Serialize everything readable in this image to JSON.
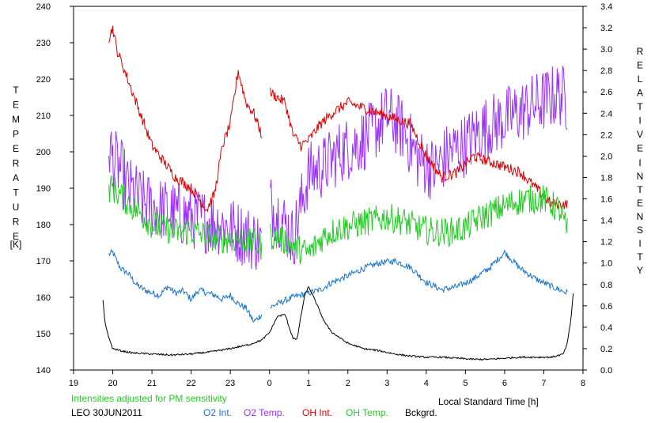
{
  "chart_data": {
    "type": "line",
    "title": "",
    "xlabel": "Local Standard Time [h]",
    "ylabel_left_letters": [
      "T",
      "E",
      "M",
      "P",
      "E",
      "R",
      "A",
      "T",
      "U",
      "R",
      "E"
    ],
    "ylabel_left_unit": "[K]",
    "ylabel_right_letters_top": [
      "R",
      "E",
      "L",
      "A",
      "T",
      "I",
      "V",
      "E"
    ],
    "ylabel_right_letters_bottom": [
      "I",
      "N",
      "T",
      "E",
      "N",
      "S",
      "I",
      "T",
      "Y"
    ],
    "x_axis": {
      "range": [
        19,
        32
      ],
      "ticks": [
        19,
        20,
        21,
        22,
        23,
        24,
        25,
        26,
        27,
        28,
        29,
        30,
        31,
        32
      ],
      "tick_labels": [
        "19",
        "20",
        "21",
        "22",
        "23",
        "0",
        "1",
        "2",
        "3",
        "4",
        "5",
        "6",
        "7",
        "8"
      ]
    },
    "y_left": {
      "range": [
        140,
        240
      ],
      "ticks": [
        140,
        150,
        160,
        170,
        180,
        190,
        200,
        210,
        220,
        230,
        240
      ],
      "tick_labels": [
        "140",
        "150",
        "160",
        "170",
        "180",
        "190",
        "200",
        "210",
        "220",
        "230",
        "240"
      ]
    },
    "y_right": {
      "range": [
        0,
        3.4
      ],
      "ticks": [
        0,
        0.2,
        0.4,
        0.6,
        0.8,
        1.0,
        1.2,
        1.4,
        1.6,
        1.8,
        2.0,
        2.2,
        2.4,
        2.6,
        2.8,
        3.0,
        3.2,
        3.4
      ],
      "tick_labels": [
        "0.0",
        "0.2",
        "0.4",
        "0.6",
        "0.8",
        "1.0",
        "1.2",
        "1.4",
        "1.6",
        "1.8",
        "2.0",
        "2.2",
        "2.4",
        "2.6",
        "2.8",
        "3.0",
        "3.2",
        "3.4"
      ]
    },
    "note": "Intensities adjusted for PM sensitivity",
    "station": "LEO 30JUN2011",
    "series": [
      {
        "name": "O2 Int.",
        "color": "#1874cd",
        "axis": "right",
        "gap": [
          23.8,
          24.0
        ],
        "x": [
          19.9,
          20.0,
          20.1,
          20.2,
          20.4,
          20.6,
          20.8,
          21.0,
          21.2,
          21.4,
          21.6,
          21.8,
          22.0,
          22.2,
          22.4,
          22.6,
          22.8,
          23.0,
          23.2,
          23.4,
          23.6,
          23.8,
          24.0,
          24.2,
          24.4,
          24.6,
          24.8,
          25.0,
          25.3,
          25.6,
          26.0,
          26.4,
          26.8,
          27.2,
          27.6,
          28.0,
          28.4,
          28.8,
          29.2,
          29.6,
          30.0,
          30.4,
          30.8,
          31.2,
          31.6
        ],
        "values": [
          1.08,
          1.1,
          1.02,
          0.95,
          0.9,
          0.8,
          0.75,
          0.72,
          0.7,
          0.78,
          0.72,
          0.74,
          0.66,
          0.75,
          0.72,
          0.7,
          0.66,
          0.7,
          0.62,
          0.58,
          0.45,
          0.52,
          0.58,
          0.62,
          0.65,
          0.68,
          0.7,
          0.72,
          0.75,
          0.82,
          0.88,
          0.95,
          1.0,
          1.02,
          0.96,
          0.82,
          0.75,
          0.78,
          0.85,
          0.95,
          1.1,
          0.95,
          0.85,
          0.78,
          0.72
        ]
      },
      {
        "name": "O2 Temp.",
        "color": "#9b30ff",
        "axis": "left",
        "gap": [
          23.8,
          24.0
        ],
        "x": [
          19.9,
          20.0,
          20.2,
          20.4,
          20.6,
          20.8,
          21.0,
          21.3,
          21.6,
          22.0,
          22.4,
          22.8,
          23.2,
          23.6,
          23.8,
          24.0,
          24.3,
          24.6,
          25.0,
          25.4,
          25.8,
          26.2,
          26.6,
          27.0,
          27.4,
          27.8,
          28.2,
          28.6,
          29.0,
          29.4,
          29.8,
          30.2,
          30.6,
          31.0,
          31.4,
          31.6
        ],
        "values": [
          202,
          198,
          195,
          190,
          188,
          186,
          185,
          184,
          183,
          182,
          181,
          180,
          178,
          176,
          175,
          186,
          182,
          176,
          194,
          196,
          200,
          202,
          205,
          210,
          206,
          198,
          195,
          200,
          202,
          206,
          208,
          210,
          212,
          214,
          216,
          214
        ]
      },
      {
        "name": "OH Int.",
        "color": "#dd0000",
        "axis": "right",
        "gap": [
          23.8,
          24.0
        ],
        "x": [
          19.9,
          20.0,
          20.1,
          20.2,
          20.4,
          20.6,
          20.8,
          21.0,
          21.2,
          21.4,
          21.6,
          21.8,
          22.0,
          22.2,
          22.4,
          22.6,
          22.8,
          23.0,
          23.2,
          23.4,
          23.6,
          23.8,
          24.0,
          24.2,
          24.4,
          24.6,
          24.8,
          25.0,
          25.3,
          25.6,
          26.0,
          26.4,
          26.8,
          27.2,
          27.6,
          28.0,
          28.4,
          28.8,
          29.2,
          29.6,
          30.0,
          30.4,
          30.8,
          31.2,
          31.6
        ],
        "values": [
          3.1,
          3.2,
          3.0,
          2.9,
          2.7,
          2.5,
          2.3,
          2.1,
          2.0,
          1.9,
          1.8,
          1.75,
          1.7,
          1.6,
          1.5,
          1.65,
          2.1,
          2.3,
          2.8,
          2.5,
          2.4,
          2.2,
          2.6,
          2.55,
          2.5,
          2.2,
          2.1,
          2.15,
          2.3,
          2.4,
          2.5,
          2.45,
          2.4,
          2.35,
          2.3,
          2.0,
          1.8,
          1.85,
          2.0,
          1.95,
          1.9,
          1.85,
          1.7,
          1.55,
          1.55
        ]
      },
      {
        "name": "OH Temp.",
        "color": "#22cc22",
        "axis": "left",
        "gap": [
          23.8,
          24.0
        ],
        "x": [
          19.9,
          20.0,
          20.2,
          20.4,
          20.6,
          20.8,
          21.0,
          21.3,
          21.6,
          22.0,
          22.4,
          22.8,
          23.2,
          23.6,
          23.8,
          24.0,
          24.3,
          24.6,
          25.0,
          25.4,
          25.8,
          26.2,
          26.6,
          27.0,
          27.4,
          27.8,
          28.2,
          28.6,
          29.0,
          29.4,
          29.8,
          30.2,
          30.6,
          31.0,
          31.4,
          31.6
        ],
        "values": [
          190,
          190,
          188,
          186,
          184,
          182,
          180,
          179,
          178,
          178,
          177,
          176,
          176,
          175,
          174,
          177,
          176,
          174,
          172,
          177,
          179,
          180,
          181,
          182,
          181,
          179,
          178,
          178,
          179,
          182,
          184,
          186,
          187,
          187,
          184,
          178
        ]
      },
      {
        "name": "Bckgrd.",
        "color": "#000000",
        "axis": "right",
        "x": [
          19.75,
          19.8,
          19.9,
          20.0,
          20.2,
          20.5,
          21.0,
          21.5,
          22.0,
          22.5,
          23.0,
          23.5,
          23.8,
          24.0,
          24.2,
          24.4,
          24.5,
          24.6,
          24.7,
          24.8,
          24.9,
          25.0,
          25.2,
          25.4,
          25.6,
          25.8,
          26.0,
          26.4,
          26.8,
          27.2,
          27.6,
          28.0,
          28.4,
          28.8,
          29.2,
          29.6,
          30.0,
          30.4,
          30.8,
          31.2,
          31.5,
          31.6,
          31.7,
          31.75
        ],
        "values": [
          0.65,
          0.45,
          0.3,
          0.2,
          0.18,
          0.16,
          0.15,
          0.14,
          0.15,
          0.17,
          0.2,
          0.24,
          0.28,
          0.35,
          0.5,
          0.52,
          0.4,
          0.3,
          0.28,
          0.5,
          0.7,
          0.78,
          0.62,
          0.45,
          0.35,
          0.3,
          0.25,
          0.2,
          0.18,
          0.15,
          0.13,
          0.12,
          0.12,
          0.11,
          0.1,
          0.1,
          0.11,
          0.12,
          0.12,
          0.12,
          0.15,
          0.25,
          0.5,
          0.72
        ]
      }
    ]
  }
}
